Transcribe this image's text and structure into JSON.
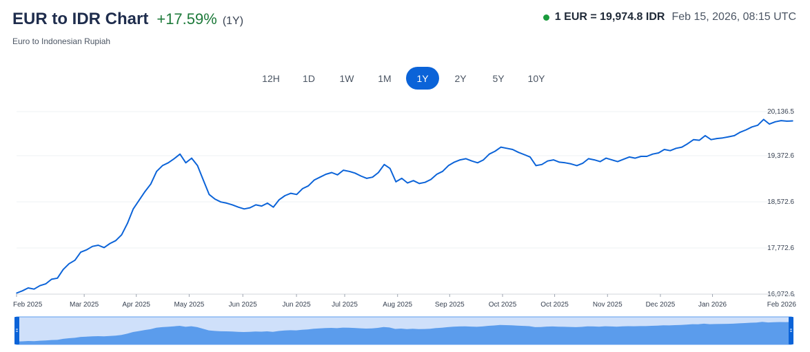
{
  "header": {
    "title": "EUR to IDR Chart",
    "change": "+17.59%",
    "period": "(1Y)",
    "subtitle": "Euro to Indonesian Rupiah",
    "rate": "1 EUR = 19,974.8 IDR",
    "timestamp": "Feb 15, 2026, 08:15 UTC"
  },
  "colors": {
    "line": "#0b63d8",
    "area": "#5b9cec",
    "active_button": "#0b63d8",
    "positive": "#1d7a3a",
    "live": "#1a9b3c"
  },
  "ranges": [
    {
      "label": "12H",
      "active": false
    },
    {
      "label": "1D",
      "active": false
    },
    {
      "label": "1W",
      "active": false
    },
    {
      "label": "1M",
      "active": false
    },
    {
      "label": "1Y",
      "active": true
    },
    {
      "label": "2Y",
      "active": false
    },
    {
      "label": "5Y",
      "active": false
    },
    {
      "label": "10Y",
      "active": false
    }
  ],
  "chart_data": {
    "type": "line",
    "title": "EUR to IDR Chart",
    "ylabel": "",
    "xlabel": "",
    "ylim": [
      16972.6,
      20136.5
    ],
    "y_ticks": [
      "20,136.5",
      "19,372.6",
      "18,572.6",
      "17,772.6",
      "16,972.6"
    ],
    "y_tick_values": [
      20136.5,
      19372.6,
      18572.6,
      17772.6,
      16972.6
    ],
    "x_ticks": [
      "Feb 2025",
      "Mar 2025",
      "Apr 2025",
      "May 2025",
      "Jun 2025",
      "Jun 2025",
      "Jul 2025",
      "Aug 2025",
      "Sep 2025",
      "Oct 2025",
      "Oct 2025",
      "Nov 2025",
      "Dec 2025",
      "Jan 2026",
      "Feb 2026"
    ],
    "x_tick_positions": [
      0,
      0.087,
      0.154,
      0.222,
      0.291,
      0.36,
      0.422,
      0.49,
      0.557,
      0.625,
      0.692,
      0.76,
      0.828,
      0.895,
      1.0
    ],
    "grid": true,
    "legend": "none",
    "series": [
      {
        "values": [
          16990,
          17030,
          17080,
          17060,
          17120,
          17150,
          17230,
          17250,
          17400,
          17500,
          17560,
          17700,
          17740,
          17800,
          17820,
          17780,
          17850,
          17900,
          18000,
          18200,
          18450,
          18600,
          18750,
          18880,
          19100,
          19200,
          19250,
          19320,
          19400,
          19250,
          19330,
          19200,
          18950,
          18700,
          18620,
          18570,
          18550,
          18520,
          18480,
          18450,
          18470,
          18520,
          18500,
          18550,
          18480,
          18610,
          18680,
          18720,
          18700,
          18800,
          18850,
          18950,
          19000,
          19050,
          19080,
          19040,
          19120,
          19100,
          19070,
          19020,
          18980,
          19000,
          19080,
          19220,
          19150,
          18920,
          18980,
          18900,
          18940,
          18890,
          18910,
          18960,
          19050,
          19100,
          19200,
          19260,
          19300,
          19320,
          19280,
          19250,
          19300,
          19400,
          19450,
          19520,
          19500,
          19480,
          19430,
          19390,
          19350,
          19200,
          19220,
          19280,
          19300,
          19260,
          19250,
          19230,
          19200,
          19240,
          19320,
          19300,
          19270,
          19330,
          19300,
          19270,
          19310,
          19350,
          19330,
          19360,
          19360,
          19400,
          19420,
          19480,
          19460,
          19500,
          19520,
          19580,
          19650,
          19640,
          19720,
          19650,
          19670,
          19680,
          19700,
          19720,
          19780,
          19820,
          19870,
          19900,
          20000,
          19920,
          19960,
          19980,
          19970,
          19975
        ]
      }
    ]
  }
}
